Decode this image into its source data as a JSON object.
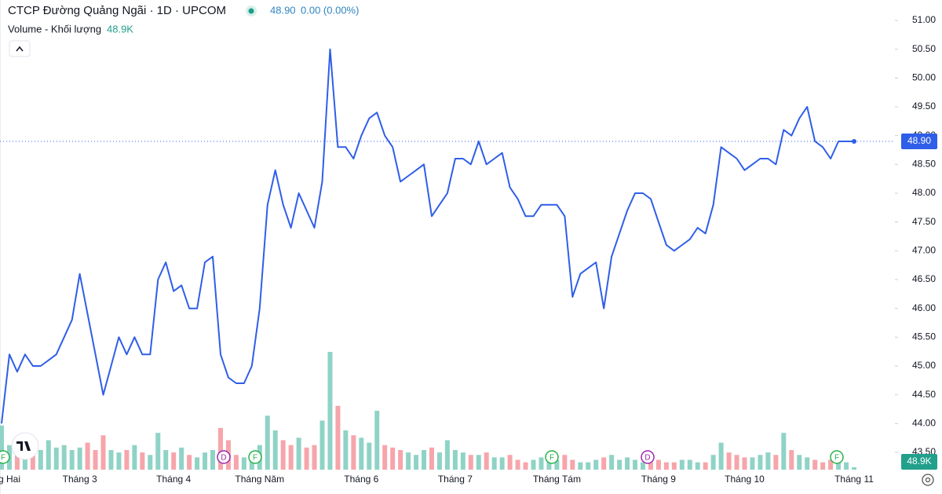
{
  "header": {
    "title": "CTCP Đường Quảng Ngãi · 1D · UPCOM",
    "price": "48.90",
    "change": "0.00 (0.00%)",
    "volume_title": "Volume - Khối lượng",
    "volume_value": "48.9K"
  },
  "chart_data": {
    "type": "line",
    "categories": [
      null,
      "g Hai",
      null,
      null,
      null,
      null,
      null,
      null,
      null,
      null,
      "Tháng 3",
      null,
      null,
      null,
      null,
      null,
      null,
      null,
      null,
      null,
      null,
      null,
      "Tháng 4",
      null,
      null,
      null,
      null,
      null,
      null,
      null,
      null,
      null,
      null,
      "Tháng Năm",
      null,
      null,
      null,
      null,
      null,
      null,
      null,
      null,
      null,
      null,
      null,
      null,
      "Tháng 6",
      null,
      null,
      null,
      null,
      null,
      null,
      null,
      null,
      null,
      null,
      null,
      "Tháng 7",
      null,
      null,
      null,
      null,
      null,
      null,
      null,
      null,
      null,
      null,
      null,
      null,
      "Tháng Tám",
      null,
      null,
      null,
      null,
      null,
      null,
      null,
      null,
      null,
      null,
      null,
      null,
      "Tháng 9",
      null,
      null,
      null,
      null,
      null,
      null,
      null,
      null,
      null,
      null,
      "Tháng 10",
      null,
      null,
      null,
      null,
      null,
      null,
      null,
      null,
      null,
      null,
      null,
      null,
      null,
      "Tháng 11"
    ],
    "series": [
      {
        "name": "Price",
        "color": "#2f5ee8",
        "values": [
          44.0,
          45.2,
          44.9,
          45.2,
          45.0,
          45.0,
          45.1,
          45.2,
          45.5,
          45.8,
          46.6,
          45.9,
          45.2,
          44.5,
          45.0,
          45.5,
          45.2,
          45.5,
          45.2,
          45.2,
          46.5,
          46.8,
          46.3,
          46.4,
          46.0,
          46.0,
          46.8,
          46.9,
          45.2,
          44.8,
          44.7,
          44.7,
          45.0,
          46.0,
          47.8,
          48.4,
          47.8,
          47.4,
          48.0,
          47.7,
          47.4,
          48.2,
          50.5,
          48.8,
          48.8,
          48.6,
          49.0,
          49.3,
          49.4,
          49.0,
          48.8,
          48.2,
          48.3,
          48.4,
          48.5,
          47.6,
          47.8,
          48.0,
          48.6,
          48.6,
          48.5,
          48.9,
          48.5,
          48.6,
          48.7,
          48.1,
          47.9,
          47.6,
          47.6,
          47.8,
          47.8,
          47.8,
          47.6,
          46.2,
          46.6,
          46.7,
          46.8,
          46.0,
          46.9,
          47.3,
          47.7,
          48.0,
          48.0,
          47.9,
          47.5,
          47.1,
          47.0,
          47.1,
          47.2,
          47.4,
          47.3,
          47.8,
          48.8,
          48.7,
          48.6,
          48.4,
          48.5,
          48.6,
          48.6,
          48.5,
          49.1,
          49.0,
          49.3,
          49.5,
          48.9,
          48.8,
          48.6,
          48.9,
          48.9,
          48.9
        ]
      },
      {
        "name": "Volume - Khối lượng",
        "up_color": "#8fd3c6",
        "down_color": "#f6a5ab",
        "values": [
          900,
          500,
          400,
          500,
          350,
          400,
          600,
          450,
          500,
          400,
          450,
          550,
          400,
          700,
          400,
          350,
          400,
          500,
          350,
          300,
          750,
          400,
          350,
          450,
          300,
          250,
          350,
          400,
          850,
          600,
          300,
          250,
          350,
          500,
          1100,
          800,
          600,
          500,
          650,
          450,
          500,
          1000,
          2400,
          1300,
          800,
          700,
          650,
          550,
          1200,
          500,
          450,
          400,
          350,
          300,
          400,
          450,
          350,
          600,
          400,
          350,
          300,
          300,
          350,
          250,
          250,
          300,
          200,
          150,
          200,
          250,
          250,
          200,
          300,
          200,
          150,
          150,
          200,
          250,
          300,
          200,
          250,
          200,
          150,
          150,
          200,
          150,
          150,
          200,
          200,
          150,
          150,
          300,
          550,
          350,
          300,
          250,
          250,
          300,
          350,
          300,
          750,
          400,
          300,
          250,
          200,
          150,
          200,
          300,
          150,
          48.9
        ]
      }
    ],
    "ylim": [
      43.5,
      51.0
    ],
    "yticks": [
      {
        "value": 51.0,
        "label": "51.00"
      },
      {
        "value": 50.5,
        "label": "50.50"
      },
      {
        "value": 50.0,
        "label": "50.00"
      },
      {
        "value": 49.5,
        "label": "49.50"
      },
      {
        "value": 49.0,
        "label": "49.00"
      },
      {
        "value": 48.5,
        "label": "48.50"
      },
      {
        "value": 48.0,
        "label": "48.00"
      },
      {
        "value": 47.5,
        "label": "47.50"
      },
      {
        "value": 47.0,
        "label": "47.00"
      },
      {
        "value": 46.5,
        "label": "46.50"
      },
      {
        "value": 46.0,
        "label": "46.00"
      },
      {
        "value": 45.5,
        "label": "45.50"
      },
      {
        "value": 45.0,
        "label": "45.00"
      },
      {
        "value": 44.5,
        "label": "44.50"
      },
      {
        "value": 44.0,
        "label": "44.00"
      },
      {
        "value": 43.5,
        "label": "43.50"
      }
    ],
    "last_price": 48.9,
    "events": [
      "F",
      "D",
      "F",
      "F",
      "D",
      "F"
    ]
  }
}
